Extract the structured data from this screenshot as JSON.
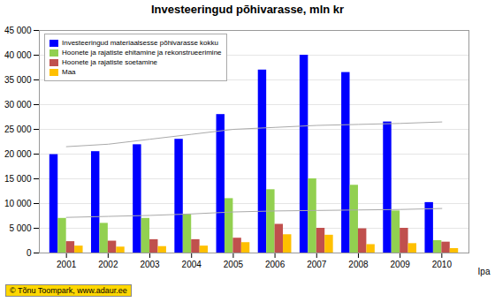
{
  "chart_data": {
    "type": "bar",
    "title": "Investeeringud põhivarasse, mln kr",
    "xlabel": "Ipa",
    "categories": [
      "2001",
      "2002",
      "2003",
      "2004",
      "2005",
      "2006",
      "2007",
      "2008",
      "2009",
      "2010"
    ],
    "series": [
      {
        "name": "Investeeringud materiaalsesse põhivarasse kokku",
        "color": "#0000FF",
        "values": [
          19900,
          20500,
          21900,
          23000,
          28000,
          37000,
          40000,
          36500,
          26500,
          10200
        ]
      },
      {
        "name": "Hoonete ja rajatiste ehitamine ja rekonstrueerimine",
        "color": "#92D050",
        "values": [
          7000,
          6000,
          7000,
          7800,
          11000,
          12800,
          15000,
          13700,
          8500,
          2500
        ]
      },
      {
        "name": "Hoonete ja rajatiste soetamine",
        "color": "#C0504D",
        "values": [
          2300,
          2400,
          2700,
          2700,
          3000,
          5800,
          5000,
          4900,
          5000,
          2200
        ]
      },
      {
        "name": "Maa",
        "color": "#FFC000",
        "values": [
          1400,
          1200,
          1300,
          1400,
          2100,
          3700,
          3600,
          1700,
          1900,
          900
        ]
      },
      {
        "type": "line",
        "color": "#AAAAAA",
        "values": [
          21500,
          22000,
          23000,
          24000,
          25000,
          25400,
          25800,
          26000,
          26200,
          26500
        ]
      },
      {
        "type": "line",
        "color": "#AAAAAA",
        "values": [
          7200,
          7400,
          7600,
          7900,
          8300,
          8500,
          8600,
          8700,
          8800,
          9000
        ]
      }
    ],
    "ylim": [
      0,
      45000
    ],
    "yticks": [
      0,
      {
        "value": 5000,
        "label": "5 000"
      },
      {
        "value": 10000,
        "label": "10 000"
      },
      {
        "value": 15000,
        "label": "15 000"
      },
      {
        "value": 20000,
        "label": "20 000"
      },
      {
        "value": 25000,
        "label": "25 000"
      },
      {
        "value": 30000,
        "label": "30 000"
      },
      {
        "value": 35000,
        "label": "35 000"
      },
      {
        "value": 40000,
        "label": "40 000"
      },
      {
        "value": 45000,
        "label": "45 000"
      }
    ],
    "grid": true,
    "legend": "upper left",
    "annotations": [
      "© Tõnu Toompark, www.adaur.ee"
    ]
  }
}
